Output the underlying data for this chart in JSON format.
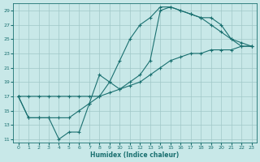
{
  "xlabel": "Humidex (Indice chaleur)",
  "bg_color": "#c8e8e8",
  "grid_color": "#a0c8c8",
  "line_color": "#1a7070",
  "xlim": [
    -0.5,
    23.5
  ],
  "ylim": [
    10.5,
    30
  ],
  "xticks": [
    0,
    1,
    2,
    3,
    4,
    5,
    6,
    7,
    8,
    9,
    10,
    11,
    12,
    13,
    14,
    15,
    16,
    17,
    18,
    19,
    20,
    21,
    22,
    23
  ],
  "yticks": [
    11,
    13,
    15,
    17,
    19,
    21,
    23,
    25,
    27,
    29
  ],
  "line1_x": [
    0,
    1,
    2,
    3,
    4,
    5,
    6,
    7,
    8,
    9,
    10,
    11,
    12,
    13,
    14,
    15,
    16,
    17,
    18,
    19,
    20,
    21,
    22,
    23
  ],
  "line1_y": [
    17,
    14,
    14,
    14,
    14,
    14,
    15,
    16,
    17,
    19,
    22,
    25,
    27,
    28,
    29.5,
    29.5,
    29,
    28.5,
    28,
    28,
    27,
    25,
    24,
    24
  ],
  "line2_x": [
    0,
    1,
    2,
    3,
    4,
    5,
    6,
    7,
    8,
    9,
    10,
    11,
    12,
    13,
    14,
    15,
    16,
    17,
    18,
    19,
    20,
    21,
    22,
    23
  ],
  "line2_y": [
    17,
    14,
    14,
    14,
    11,
    12,
    12,
    16,
    20,
    19,
    18,
    19,
    20,
    22,
    29,
    29.5,
    29,
    28.5,
    28,
    27,
    26,
    25,
    24.5,
    24
  ],
  "line3_x": [
    0,
    1,
    2,
    3,
    4,
    5,
    6,
    7,
    8,
    9,
    10,
    11,
    12,
    13,
    14,
    15,
    16,
    17,
    18,
    19,
    20,
    21,
    22,
    23
  ],
  "line3_y": [
    17,
    17,
    17,
    17,
    17,
    17,
    17,
    17,
    17,
    17.5,
    18,
    18.5,
    19,
    20,
    21,
    22,
    22.5,
    23,
    23,
    23.5,
    23.5,
    23.5,
    24,
    24
  ]
}
